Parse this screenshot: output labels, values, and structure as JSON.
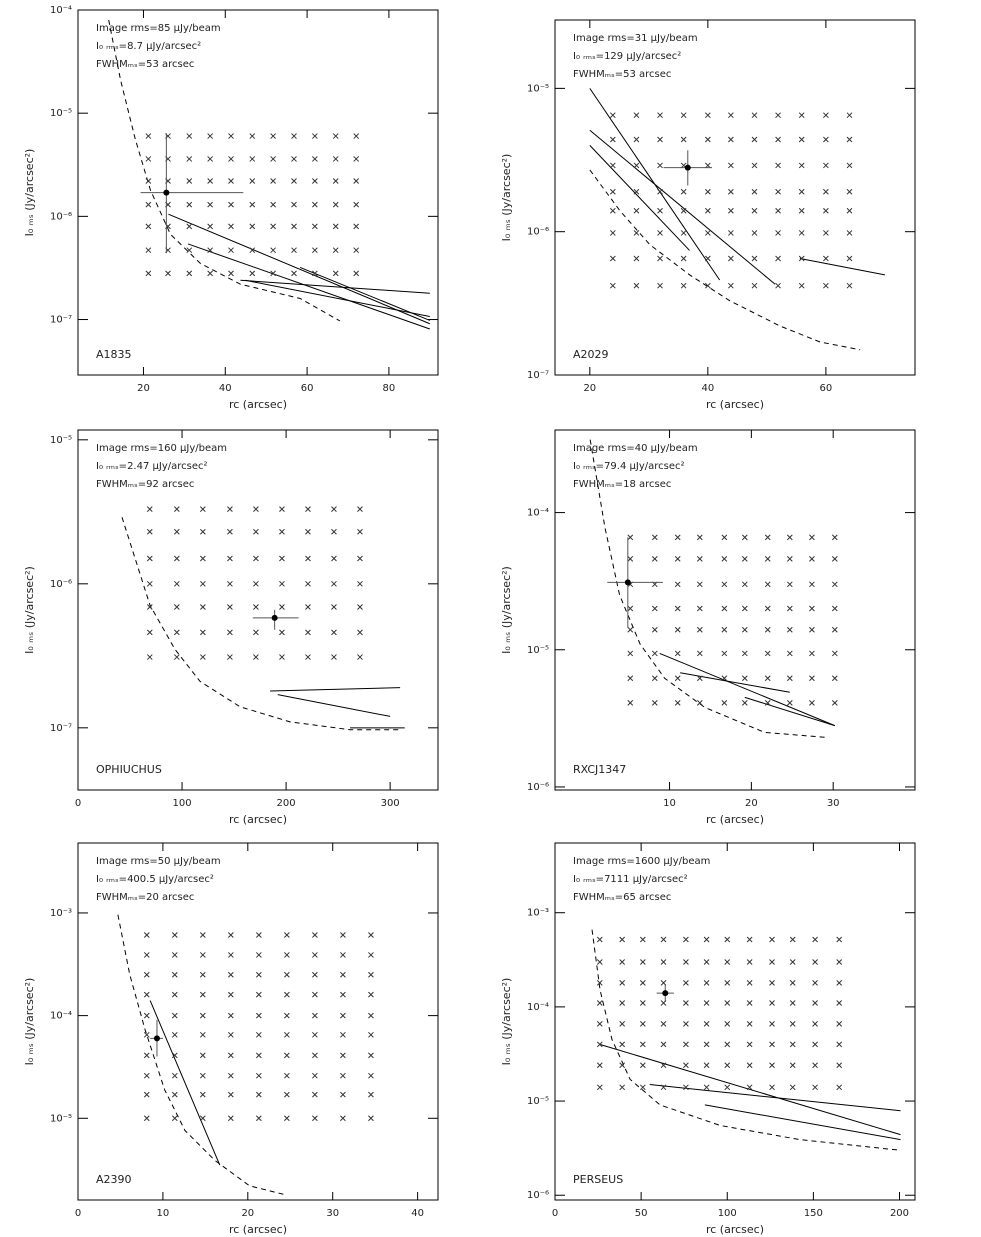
{
  "chart_data": [
    {
      "type": "scatter",
      "title": "A1835",
      "annotations": [
        "Image rms=85 μJy/beam",
        "I₀ ᵣₘₛ=8.7 μJy/arcsec²",
        "FWHMₘₛ=53 arcsec"
      ],
      "x_label": "rc (arcsec)",
      "y_label": "I₀ ₘₛ (Jy/arcsec²)",
      "log_y": true,
      "xlim": [
        4,
        92
      ],
      "xticks": [
        20,
        40,
        60,
        80
      ],
      "ylim": [
        2.9e-08,
        0.0001
      ],
      "yticks": [
        {
          "value": 0.0001,
          "label": "10⁻⁴"
        },
        {
          "value": 1e-05,
          "label": "10⁻⁵"
        },
        {
          "value": 1e-06,
          "label": "10⁻⁶"
        },
        {
          "value": 1e-07,
          "label": "10⁻⁷"
        }
      ],
      "grid_x": [
        21.2,
        26,
        31.2,
        36.3,
        41.4,
        46.6,
        51.7,
        56.8,
        61.9,
        67,
        72
      ],
      "grid_y": [
        6e-06,
        3.6e-06,
        2.2e-06,
        1.3e-06,
        8e-07,
        4.7e-07,
        2.8e-07
      ],
      "point": {
        "x": 25.6,
        "y": 1.7e-06,
        "xrange": [
          19.3,
          44.4
        ],
        "yrange": [
          4.4e-07,
          6.4e-06
        ]
      },
      "curve": {
        "x": [
          11.5,
          14.4,
          18,
          21.7,
          26.6,
          33.9,
          43.7,
          58.3,
          68
        ],
        "y": [
          8e-05,
          2.1e-05,
          5.6e-06,
          1.8e-06,
          6.7e-07,
          3.5e-07,
          2.2e-07,
          1.6e-07,
          9.7e-08
        ]
      },
      "tracks": [
        {
          "x": [
            43.7,
            90
          ],
          "y": [
            2.4e-07,
            1.8e-07
          ]
        },
        {
          "x": [
            44.9,
            90
          ],
          "y": [
            2.4e-07,
            1.07e-07
          ]
        },
        {
          "x": [
            26.1,
            90
          ],
          "y": [
            1.05e-06,
            9.1e-08
          ]
        },
        {
          "x": [
            30.9,
            90
          ],
          "y": [
            5.4e-07,
            8.1e-08
          ]
        },
        {
          "x": [
            58.3,
            90
          ],
          "y": [
            3.2e-07,
            9.8e-08
          ]
        }
      ]
    },
    {
      "type": "scatter",
      "title": "A2029",
      "annotations": [
        "Image rms=31 μJy/beam",
        "I₀ ᵣₘₛ=129 μJy/arcsec²",
        "FWHMₘₛ=53 arcsec"
      ],
      "x_label": "rc (arcsec)",
      "y_label": "I₀ ₘₛ (Jy/arcsec²)",
      "log_y": true,
      "xlim": [
        14.1,
        75.1
      ],
      "xticks": [
        20,
        40,
        60
      ],
      "ylim": [
        1e-07,
        3e-05
      ],
      "yticks": [
        {
          "value": 1e-05,
          "label": "10⁻⁵"
        },
        {
          "value": 1e-06,
          "label": "10⁻⁶"
        },
        {
          "value": 1e-07,
          "label": "10⁻⁷"
        }
      ],
      "grid_x": [
        23.9,
        27.9,
        31.9,
        35.9,
        40,
        43.9,
        47.9,
        51.9,
        55.9,
        60,
        64
      ],
      "grid_y": [
        6.5e-06,
        4.4e-06,
        2.9e-06,
        1.9e-06,
        1.4e-06,
        9.8e-07,
        6.5e-07,
        4.2e-07
      ],
      "point": {
        "x": 36.6,
        "y": 2.8e-06,
        "xrange": [
          32.5,
          40.7
        ],
        "yrange": [
          2.1e-06,
          3.7e-06
        ]
      },
      "curve": {
        "x": [
          20,
          25.1,
          30.2,
          36.9,
          43.7,
          52.2,
          59,
          65.8
        ],
        "y": [
          2.7e-06,
          1.4e-06,
          8.1e-07,
          5e-07,
          3.3e-07,
          2.2e-07,
          1.7e-07,
          1.5e-07
        ]
      },
      "tracks": [
        {
          "x": [
            20,
            42
          ],
          "y": [
            1e-05,
            4.6e-07
          ]
        },
        {
          "x": [
            20,
            51.4
          ],
          "y": [
            5.1e-06,
            4.3e-07
          ]
        },
        {
          "x": [
            20,
            36.9
          ],
          "y": [
            4e-06,
            7.4e-07
          ]
        },
        {
          "x": [
            55.6,
            70
          ],
          "y": [
            6.5e-07,
            5e-07
          ]
        }
      ]
    },
    {
      "type": "scatter",
      "title": "OPHIUCHUS",
      "annotations": [
        "Image rms=160 μJy/beam",
        "I₀ ᵣₘₛ=2.47 μJy/arcsec²",
        "FWHMₘₛ=92 arcsec"
      ],
      "x_label": "rc (arcsec)",
      "y_label": "I₀ ₘₛ (Jy/arcsec²)",
      "log_y": true,
      "xlim": [
        0,
        346
      ],
      "xticks": [
        0,
        100,
        200,
        300
      ],
      "ylim": [
        3.7e-08,
        1.17e-05
      ],
      "yticks": [
        {
          "value": 1e-05,
          "label": "10⁻⁵"
        },
        {
          "value": 1e-06,
          "label": "10⁻⁶"
        },
        {
          "value": 1e-07,
          "label": "10⁻⁷"
        }
      ],
      "grid_x": [
        69,
        95,
        120,
        146,
        171,
        196,
        221,
        246,
        271
      ],
      "grid_y": [
        3.3e-06,
        2.3e-06,
        1.5e-06,
        1e-06,
        6.9e-07,
        4.6e-07,
        3.1e-07
      ],
      "point": {
        "x": 189,
        "y": 5.8e-07,
        "xrange": [
          168,
          212
        ],
        "yrange": [
          4.8e-07,
          6.6e-07
        ]
      },
      "curve": {
        "x": [
          42.3,
          69.2,
          93.3,
          117.3,
          155.8,
          203.8,
          261.5,
          309.6
        ],
        "y": [
          2.9e-06,
          7.1e-07,
          3.5e-07,
          2.1e-07,
          1.4e-07,
          1.1e-07,
          9.7e-08,
          9.7e-08
        ]
      },
      "tracks": [
        {
          "x": [
            184.6,
            309.6
          ],
          "y": [
            1.8e-07,
            1.9e-07
          ]
        },
        {
          "x": [
            261.5,
            314
          ],
          "y": [
            1e-07,
            1e-07
          ]
        },
        {
          "x": [
            192,
            300
          ],
          "y": [
            1.7e-07,
            1.2e-07
          ]
        }
      ]
    },
    {
      "type": "scatter",
      "title": "RXCJ1347",
      "annotations": [
        "Image rms=40 μJy/beam",
        "I₀ ᵣₘₛ=79.4 μJy/arcsec²",
        "FWHMₘₛ=18 arcsec"
      ],
      "x_label": "rc (arcsec)",
      "y_label": "I₀ ₘₛ (Jy/arcsec²)",
      "log_y": true,
      "xlim": [
        -4,
        40
      ],
      "xticks": [
        10,
        20,
        30
      ],
      "ylim": [
        9.5e-07,
        0.0004
      ],
      "yticks": [
        {
          "value": 0.0001,
          "label": "10⁻⁴"
        },
        {
          "value": 1e-05,
          "label": "10⁻⁵"
        },
        {
          "value": 1e-06,
          "label": "10⁻⁶"
        }
      ],
      "grid_x": [
        5.2,
        8.2,
        11,
        13.7,
        16.7,
        19.2,
        22,
        24.7,
        27.4,
        30.2
      ],
      "grid_y": [
        6.6e-05,
        4.6e-05,
        3e-05,
        2e-05,
        1.4e-05,
        9.4e-06,
        6.2e-06,
        4.1e-06
      ],
      "point": {
        "x": 4.9,
        "y": 3.1e-05,
        "xrange": [
          2.4,
          9.2
        ],
        "yrange": [
          1.45e-05,
          6.6e-05
        ]
      },
      "curve": {
        "x": [
          0.3,
          2.1,
          3.9,
          6.4,
          9.4,
          14.3,
          21.6,
          29
        ],
        "y": [
          0.00034,
          7.8e-05,
          2.5e-05,
          1.1e-05,
          6.2e-06,
          3.8e-06,
          2.5e-06,
          2.3e-06
        ]
      },
      "tracks": [
        {
          "x": [
            8.8,
            30.2
          ],
          "y": [
            9.4e-06,
            2.8e-06
          ]
        },
        {
          "x": [
            11.3,
            24.7
          ],
          "y": [
            6.8e-06,
            4.9e-06
          ]
        },
        {
          "x": [
            19.2,
            30.2
          ],
          "y": [
            4.5e-06,
            2.8e-06
          ]
        }
      ]
    },
    {
      "type": "scatter",
      "title": "A2390",
      "annotations": [
        "Image rms=50 μJy/beam",
        "I₀ ᵣₘₛ=400.5 μJy/arcsec²",
        "FWHMₘₛ=20 arcsec"
      ],
      "x_label": "rc (arcsec)",
      "y_label": "I₀ ₘₛ (Jy/arcsec²)",
      "log_y": true,
      "xlim": [
        0,
        42.4
      ],
      "xticks": [
        0,
        10,
        20,
        30,
        40
      ],
      "ylim": [
        1.6e-06,
        0.0048
      ],
      "yticks": [
        {
          "value": 0.001,
          "label": "10⁻³"
        },
        {
          "value": 0.0001,
          "label": "10⁻⁴"
        },
        {
          "value": 1e-05,
          "label": "10⁻⁵"
        }
      ],
      "grid_x": [
        8.1,
        11.4,
        14.7,
        18,
        21.3,
        24.6,
        27.9,
        31.2,
        34.5
      ],
      "grid_y": [
        0.00061,
        0.00039,
        0.00025,
        0.00016,
        0.0001,
        6.5e-05,
        4.1e-05,
        2.6e-05,
        1.7e-05,
        1e-05
      ],
      "point": {
        "x": 9.3,
        "y": 6e-05,
        "xrange": [
          8.5,
          10
        ],
        "yrange": [
          4e-05,
          9.1e-05
        ]
      },
      "curve": {
        "x": [
          4.7,
          6.1,
          7.9,
          10.2,
          12.6,
          16.1,
          20.2,
          24.4
        ],
        "y": [
          0.00096,
          0.00025,
          7.3e-05,
          1.9e-05,
          7.6e-06,
          3.9e-06,
          2.2e-06,
          1.8e-06
        ]
      },
      "tracks": [
        {
          "x": [
            8.5,
            16.7
          ],
          "y": [
            0.00014,
            3.5e-06
          ]
        }
      ]
    },
    {
      "type": "scatter",
      "title": "PERSEUS",
      "annotations": [
        "Image rms=1600 μJy/beam",
        "I₀ ᵣₘₛ=7111 μJy/arcsec²",
        "FWHMₘₛ=65 arcsec"
      ],
      "x_label": "rc (arcsec)",
      "y_label": "I₀ ₘₛ (Jy/arcsec²)",
      "log_y": true,
      "xlim": [
        0,
        209
      ],
      "xticks": [
        0,
        50,
        100,
        150,
        200
      ],
      "ylim": [
        8.9e-07,
        0.0055
      ],
      "yticks": [
        {
          "value": 0.001,
          "label": "10⁻³"
        },
        {
          "value": 0.0001,
          "label": "10⁻⁴"
        },
        {
          "value": 1e-05,
          "label": "10⁻⁵"
        },
        {
          "value": 1e-06,
          "label": "10⁻⁶"
        }
      ],
      "grid_x": [
        26,
        39,
        51,
        63,
        76,
        88,
        100,
        113,
        126,
        138,
        151,
        165
      ],
      "grid_y": [
        0.00052,
        0.0003,
        0.00018,
        0.00011,
        6.6e-05,
        4e-05,
        2.4e-05,
        1.4e-05
      ],
      "point": {
        "x": 64,
        "y": 0.00014,
        "xrange": [
          59,
          69
        ],
        "yrange": [
          0.000115,
          0.00017
        ]
      },
      "curve": {
        "x": [
          21.5,
          26.2,
          33.1,
          43.6,
          61,
          96,
          142,
          200.6
        ],
        "y": [
          0.00066,
          0.00015,
          4.5e-05,
          1.7e-05,
          9.1e-06,
          5.5e-06,
          3.9e-06,
          3e-06
        ]
      },
      "tracks": [
        {
          "x": [
            55,
            200.6
          ],
          "y": [
            1.5e-05,
            7.9e-06
          ]
        },
        {
          "x": [
            87,
            200.6
          ],
          "y": [
            9.1e-06,
            3.9e-06
          ]
        },
        {
          "x": [
            26,
            200.6
          ],
          "y": [
            4e-05,
            4.4e-06
          ]
        }
      ]
    }
  ]
}
